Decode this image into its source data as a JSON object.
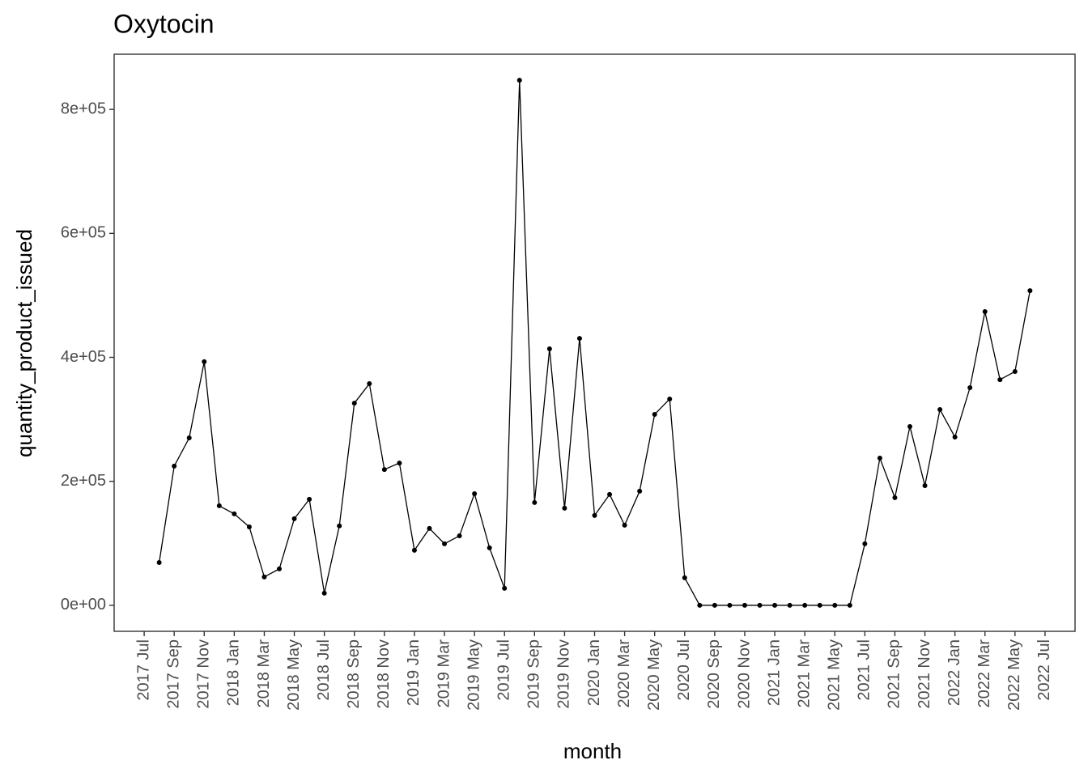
{
  "chart_data": {
    "type": "line",
    "title": "Oxytocin",
    "x_label": "month",
    "y_label": "quantity_product_issued",
    "x": [
      "2017-08",
      "2017-09",
      "2017-10",
      "2017-11",
      "2017-12",
      "2018-01",
      "2018-02",
      "2018-03",
      "2018-04",
      "2018-05",
      "2018-06",
      "2018-07",
      "2018-08",
      "2018-09",
      "2018-10",
      "2018-11",
      "2018-12",
      "2019-01",
      "2019-02",
      "2019-03",
      "2019-04",
      "2019-05",
      "2019-06",
      "2019-07",
      "2019-08",
      "2019-09",
      "2019-10",
      "2019-11",
      "2019-12",
      "2020-01",
      "2020-02",
      "2020-03",
      "2020-04",
      "2020-05",
      "2020-06",
      "2020-07",
      "2020-08",
      "2020-09",
      "2020-10",
      "2020-11",
      "2020-12",
      "2021-01",
      "2021-02",
      "2021-03",
      "2021-04",
      "2021-05",
      "2021-06",
      "2021-07",
      "2021-08",
      "2021-09",
      "2021-10",
      "2021-11",
      "2021-12",
      "2022-01",
      "2022-02",
      "2022-03",
      "2022-04",
      "2022-05",
      "2022-06"
    ],
    "series": [
      {
        "name": "quantity_product_issued",
        "color": "#000000",
        "values": [
          69000,
          224500,
          270000,
          393000,
          160500,
          147500,
          126500,
          45700,
          58700,
          139600,
          171000,
          19600,
          128000,
          326000,
          357500,
          219000,
          229500,
          88700,
          124000,
          99200,
          112000,
          180000,
          92700,
          27400,
          847000,
          165700,
          413700,
          156600,
          430600,
          144900,
          178800,
          129200,
          184000,
          308000,
          332800,
          44400,
          0,
          0,
          0,
          0,
          0,
          0,
          0,
          0,
          0,
          0,
          0,
          99200,
          237500,
          173600,
          288400,
          193100,
          315800,
          271400,
          351000,
          473700,
          364000,
          377100,
          507600
        ]
      }
    ],
    "xlim": [
      "2017-05",
      "2022-09"
    ],
    "xticks": [
      {
        "value": "2017-07",
        "label": "2017 Jul"
      },
      {
        "value": "2017-09",
        "label": "2017 Sep"
      },
      {
        "value": "2017-11",
        "label": "2017 Nov"
      },
      {
        "value": "2018-01",
        "label": "2018 Jan"
      },
      {
        "value": "2018-03",
        "label": "2018 Mar"
      },
      {
        "value": "2018-05",
        "label": "2018 May"
      },
      {
        "value": "2018-07",
        "label": "2018 Jul"
      },
      {
        "value": "2018-09",
        "label": "2018 Sep"
      },
      {
        "value": "2018-11",
        "label": "2018 Nov"
      },
      {
        "value": "2019-01",
        "label": "2019 Jan"
      },
      {
        "value": "2019-03",
        "label": "2019 Mar"
      },
      {
        "value": "2019-05",
        "label": "2019 May"
      },
      {
        "value": "2019-07",
        "label": "2019 Jul"
      },
      {
        "value": "2019-09",
        "label": "2019 Sep"
      },
      {
        "value": "2019-11",
        "label": "2019 Nov"
      },
      {
        "value": "2020-01",
        "label": "2020 Jan"
      },
      {
        "value": "2020-03",
        "label": "2020 Mar"
      },
      {
        "value": "2020-05",
        "label": "2020 May"
      },
      {
        "value": "2020-07",
        "label": "2020 Jul"
      },
      {
        "value": "2020-09",
        "label": "2020 Sep"
      },
      {
        "value": "2020-11",
        "label": "2020 Nov"
      },
      {
        "value": "2021-01",
        "label": "2021 Jan"
      },
      {
        "value": "2021-03",
        "label": "2021 Mar"
      },
      {
        "value": "2021-05",
        "label": "2021 May"
      },
      {
        "value": "2021-07",
        "label": "2021 Jul"
      },
      {
        "value": "2021-09",
        "label": "2021 Sep"
      },
      {
        "value": "2021-11",
        "label": "2021 Nov"
      },
      {
        "value": "2022-01",
        "label": "2022 Jan"
      },
      {
        "value": "2022-03",
        "label": "2022 Mar"
      },
      {
        "value": "2022-05",
        "label": "2022 May"
      },
      {
        "value": "2022-07",
        "label": "2022 Jul"
      }
    ],
    "ylim": [
      -42000,
      889000
    ],
    "yticks": [
      {
        "value": 0,
        "label": "0e+00"
      },
      {
        "value": 200000,
        "label": "2e+05"
      },
      {
        "value": 400000,
        "label": "4e+05"
      },
      {
        "value": 600000,
        "label": "6e+05"
      },
      {
        "value": 800000,
        "label": "8e+05"
      }
    ],
    "grid": false
  }
}
